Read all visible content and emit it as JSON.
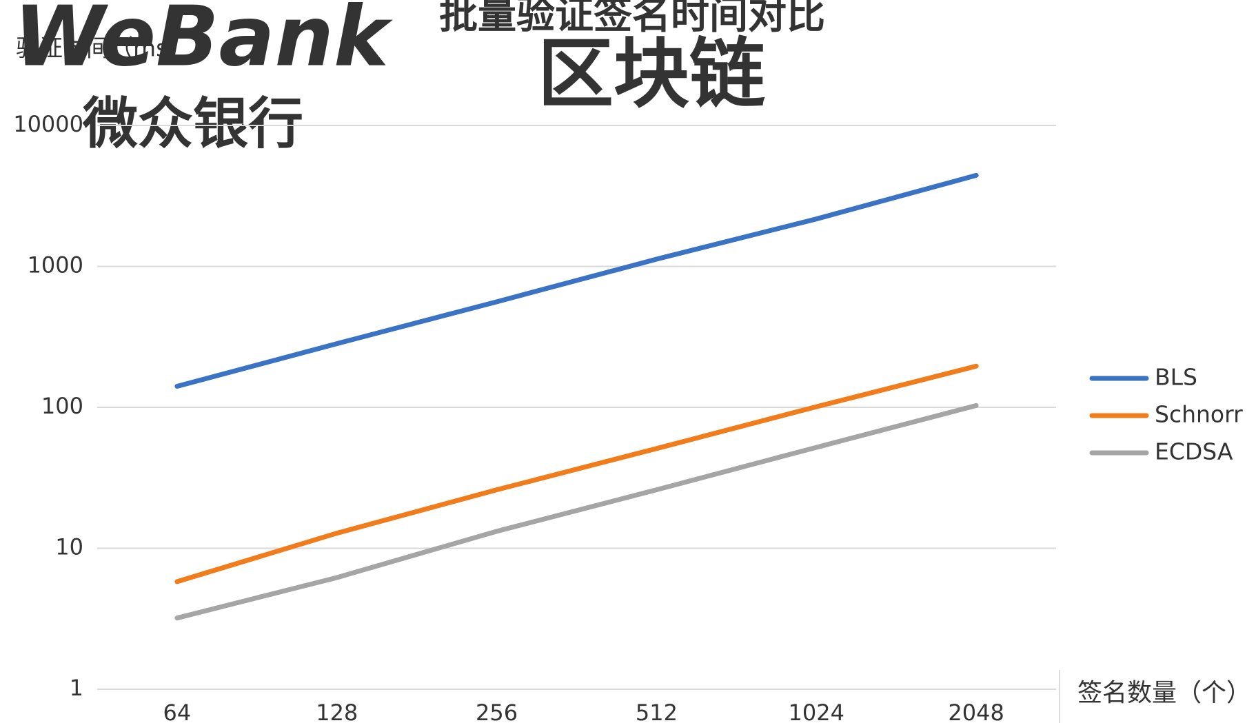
{
  "chart_data": {
    "type": "line",
    "title": "批量验证签名时间对比",
    "y_label": "验证时间（ms）",
    "x_label": "签名数量（个）",
    "watermark": [
      "WeBank",
      "区块链",
      "微众银行"
    ],
    "categories": [
      "64",
      "128",
      "256",
      "512",
      "1024",
      "2048"
    ],
    "series": [
      {
        "name": "BLS",
        "color": "#3a72c4",
        "values": [
          141,
          283,
          561,
          1125,
          2170,
          4425
        ]
      },
      {
        "name": "Schnorr",
        "color": "#f07c1b",
        "values": [
          5.8,
          12.8,
          26,
          51,
          101,
          196
        ]
      },
      {
        "name": "ECDSA",
        "color": "#a5a5a5",
        "values": [
          3.2,
          6.2,
          13.2,
          26,
          52,
          103
        ]
      }
    ],
    "ylim": [
      1,
      10000
    ],
    "yticks": [
      1,
      10,
      100,
      1000,
      10000
    ],
    "log_scale": true,
    "grid": true,
    "legend": "right"
  }
}
